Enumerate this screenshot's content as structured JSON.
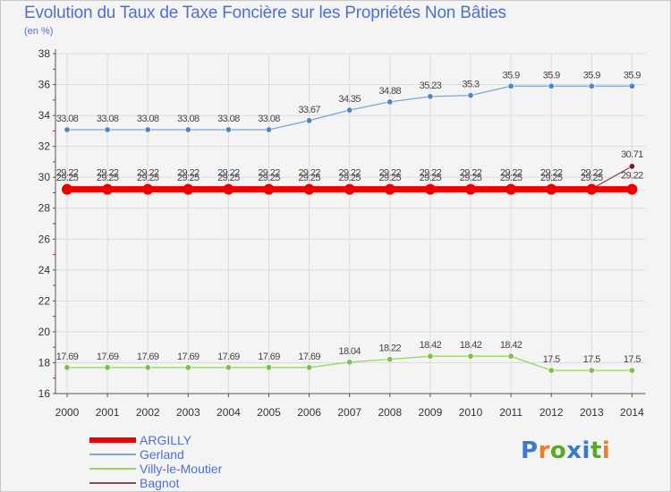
{
  "chart_data": {
    "type": "line",
    "title": "Evolution du Taux de Taxe Foncière sur les Propriétés Non Bâties",
    "subtitle": "(en %)",
    "xlabel": "",
    "ylabel": "",
    "ylim": [
      16,
      38
    ],
    "yticks": [
      16,
      18,
      20,
      22,
      24,
      26,
      28,
      30,
      32,
      34,
      36,
      38
    ],
    "categories": [
      "2000",
      "2001",
      "2002",
      "2003",
      "2004",
      "2005",
      "2006",
      "2007",
      "2008",
      "2009",
      "2010",
      "2011",
      "2012",
      "2013",
      "2014"
    ],
    "series": [
      {
        "name": "Villy-le-Moutier",
        "color": "#9ad464",
        "dot": "#7cc24a",
        "values": [
          17.69,
          17.69,
          17.69,
          17.69,
          17.69,
          17.69,
          17.69,
          18.04,
          18.22,
          18.42,
          18.42,
          18.42,
          17.5,
          17.5,
          17.5
        ],
        "labels": [
          "17.69",
          "17.69",
          "17.69",
          "17.69",
          "17.69",
          "17.69",
          "17.69",
          "18.04",
          "18.22",
          "18.42",
          "18.42",
          "18.42",
          "17.5",
          "17.5",
          "17.5"
        ]
      },
      {
        "name": "Gerland",
        "color": "#7aa6d8",
        "dot": "#4a88c8",
        "values": [
          33.08,
          33.08,
          33.08,
          33.08,
          33.08,
          33.08,
          33.67,
          34.35,
          34.88,
          35.23,
          35.3,
          35.9,
          35.9,
          35.9,
          35.9
        ],
        "labels": [
          "33.08",
          "33.08",
          "33.08",
          "33.08",
          "33.08",
          "33.08",
          "33.67",
          "34.35",
          "34.88",
          "35.23",
          "35.3",
          "35.9",
          "35.9",
          "35.9",
          "35.9"
        ]
      },
      {
        "name": "Bagnot",
        "color": "#8a4a55",
        "dot": "#6a2233",
        "values": [
          29.25,
          29.25,
          29.25,
          29.25,
          29.25,
          29.25,
          29.25,
          29.25,
          29.25,
          29.25,
          29.25,
          29.25,
          29.25,
          29.25,
          30.71
        ],
        "labels": [
          "29.25",
          "29.25",
          "29.25",
          "29.25",
          "29.25",
          "29.25",
          "29.25",
          "29.25",
          "29.25",
          "29.25",
          "29.25",
          "29.25",
          "29.25",
          "29.25",
          "30.71"
        ]
      },
      {
        "name": "ARGILLY",
        "color": "#ee0000",
        "dot": "#ee0000",
        "thick": true,
        "values": [
          29.22,
          29.22,
          29.22,
          29.22,
          29.22,
          29.22,
          29.22,
          29.22,
          29.22,
          29.22,
          29.22,
          29.22,
          29.22,
          29.22,
          29.22
        ],
        "labels": [
          "29.22",
          "29.22",
          "29.22",
          "29.22",
          "29.22",
          "29.22",
          "29.22",
          "29.22",
          "29.22",
          "29.22",
          "29.22",
          "29.22",
          "29.22",
          "29.22",
          "29.22"
        ]
      }
    ],
    "legend": [
      {
        "name": "ARGILLY",
        "color": "#ee0000",
        "thick": true
      },
      {
        "name": "Gerland",
        "color": "#7aa6d8"
      },
      {
        "name": "Villy-le-Moutier",
        "color": "#9ad464"
      },
      {
        "name": "Bagnot",
        "color": "#8a4a55"
      }
    ]
  },
  "logo": {
    "text": "Proxiti",
    "colors": [
      "#3a7ac8",
      "#e8822a",
      "#58a82a",
      "#3a7ac8",
      "#3a7ac8",
      "#58a82a",
      "#e8822a"
    ]
  }
}
